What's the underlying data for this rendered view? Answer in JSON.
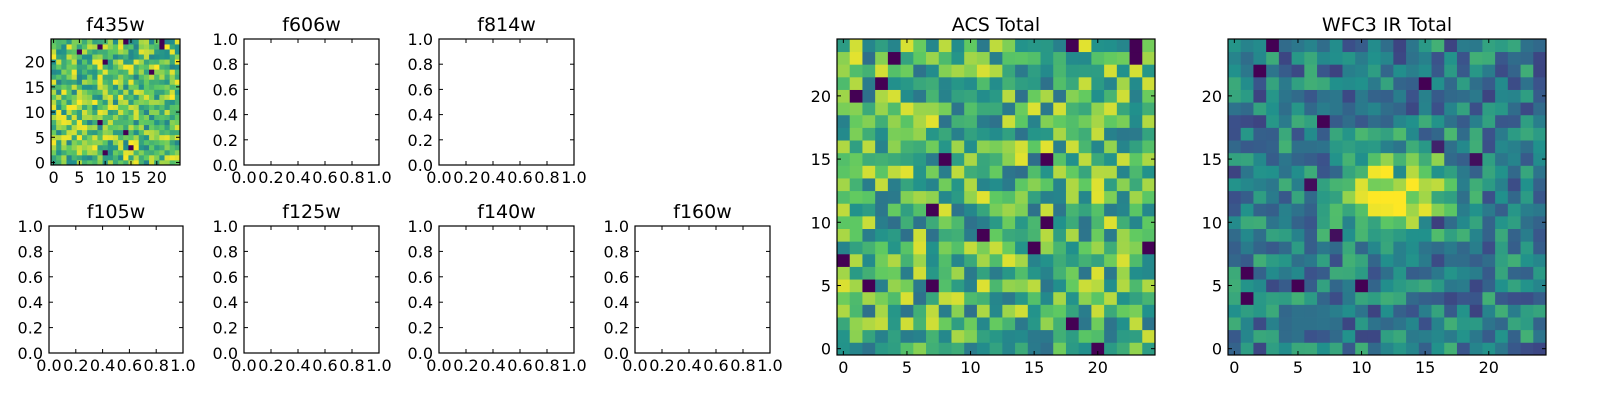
{
  "figure": {
    "background": "#ffffff",
    "colormap": [
      "#440154",
      "#31688e",
      "#35b779",
      "#fde725"
    ]
  },
  "chart_data": [
    {
      "type": "heatmap",
      "title": "f435w",
      "grid_size": [
        25,
        25
      ],
      "x_ticks": [
        "0",
        "5",
        "10",
        "15",
        "20"
      ],
      "y_ticks": [
        "0",
        "5",
        "10",
        "15",
        "20"
      ],
      "xlim": [
        -0.5,
        24.5
      ],
      "ylim": [
        -0.5,
        24.5
      ],
      "pattern": "noise",
      "seed": 11,
      "base": 0.72,
      "spread": 0.28
    },
    {
      "type": "empty",
      "title": "f606w",
      "x_ticks": [
        "0.0",
        "0.2",
        "0.4",
        "0.6",
        "0.8",
        "1.0"
      ],
      "y_ticks": [
        "0.0",
        "0.2",
        "0.4",
        "0.6",
        "0.8",
        "1.0"
      ],
      "xlim": [
        0,
        1
      ],
      "ylim": [
        0,
        1
      ]
    },
    {
      "type": "empty",
      "title": "f814w",
      "x_ticks": [
        "0.0",
        "0.2",
        "0.4",
        "0.6",
        "0.8",
        "1.0"
      ],
      "y_ticks": [
        "0.0",
        "0.2",
        "0.4",
        "0.6",
        "0.8",
        "1.0"
      ],
      "xlim": [
        0,
        1
      ],
      "ylim": [
        0,
        1
      ]
    },
    {
      "type": "empty",
      "title": "f105w",
      "x_ticks": [
        "0.0",
        "0.2",
        "0.4",
        "0.6",
        "0.8",
        "1.0"
      ],
      "y_ticks": [
        "0.0",
        "0.2",
        "0.4",
        "0.6",
        "0.8",
        "1.0"
      ],
      "xlim": [
        0,
        1
      ],
      "ylim": [
        0,
        1
      ]
    },
    {
      "type": "empty",
      "title": "f125w",
      "x_ticks": [
        "0.0",
        "0.2",
        "0.4",
        "0.6",
        "0.8",
        "1.0"
      ],
      "y_ticks": [
        "0.0",
        "0.2",
        "0.4",
        "0.6",
        "0.8",
        "1.0"
      ],
      "xlim": [
        0,
        1
      ],
      "ylim": [
        0,
        1
      ]
    },
    {
      "type": "empty",
      "title": "f140w",
      "x_ticks": [
        "0.0",
        "0.2",
        "0.4",
        "0.6",
        "0.8",
        "1.0"
      ],
      "y_ticks": [
        "0.0",
        "0.2",
        "0.4",
        "0.6",
        "0.8",
        "1.0"
      ],
      "xlim": [
        0,
        1
      ],
      "ylim": [
        0,
        1
      ]
    },
    {
      "type": "empty",
      "title": "f160w",
      "x_ticks": [
        "0.0",
        "0.2",
        "0.4",
        "0.6",
        "0.8",
        "1.0"
      ],
      "y_ticks": [
        "0.0",
        "0.2",
        "0.4",
        "0.6",
        "0.8",
        "1.0"
      ],
      "xlim": [
        0,
        1
      ],
      "ylim": [
        0,
        1
      ]
    },
    {
      "type": "heatmap",
      "title": "ACS Total",
      "grid_size": [
        25,
        25
      ],
      "x_ticks": [
        "0",
        "5",
        "10",
        "15",
        "20"
      ],
      "y_ticks": [
        "0",
        "5",
        "10",
        "15",
        "20"
      ],
      "xlim": [
        -0.5,
        24.5
      ],
      "ylim": [
        -0.5,
        24.5
      ],
      "pattern": "noise",
      "seed": 37,
      "base": 0.66,
      "spread": 0.3
    },
    {
      "type": "heatmap",
      "title": "WFC3 IR Total",
      "grid_size": [
        25,
        25
      ],
      "x_ticks": [
        "0",
        "5",
        "10",
        "15",
        "20"
      ],
      "y_ticks": [
        "0",
        "5",
        "10",
        "15",
        "20"
      ],
      "xlim": [
        -0.5,
        24.5
      ],
      "ylim": [
        -0.5,
        24.5
      ],
      "pattern": "source",
      "seed": 73,
      "base": 0.42,
      "spread": 0.22,
      "source_center": [
        13,
        12.5
      ],
      "source_sigma": [
        3.0,
        2.2
      ],
      "source_peak": 0.6
    }
  ]
}
